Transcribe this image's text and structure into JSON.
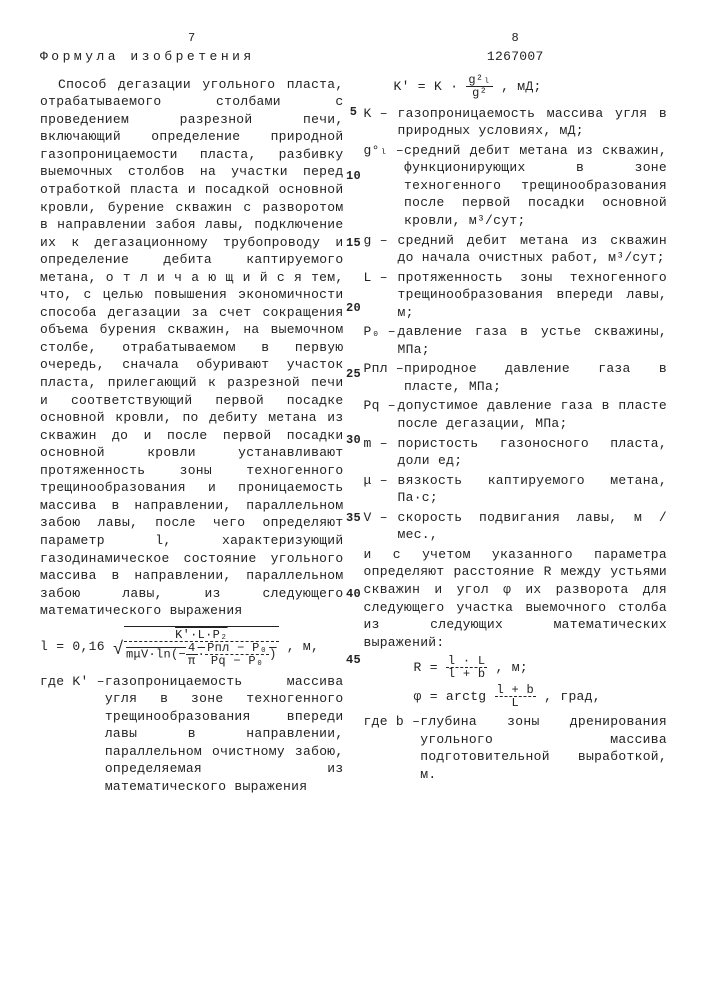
{
  "left": {
    "page_num": "7",
    "title": "Формула изобретения",
    "body": "Способ дегазации угольного пласта, отрабатываемого столбами с проведением разрезной печи, включающий определение природной газопроницаемости пласта, разбивку выемочных столбов на участки перед отработкой пласта и посадкой основной кровли, бурение скважин с разворотом в направлении забоя лавы, подключение их к дегазационному трубопроводу и определение дебита каптируемого метана, о т л и ч а ю щ и й с я  тем, что, с целью повышения экономичности способа дегазации за счет сокращения объема бурения скважин, на выемочном столбе, отрабатываемом в первую очередь, сначала обуривают участок пласта, прилегающий к разрезной печи и соответствующий первой посадке основной кровли, по дебиту метана из скважин до и после первой посадки основной кровли устанавливают протяженность зоны техногенного трещинообразования и проницаемость массива в направлении, параллельном забою лавы, после чего определяют параметр l, характеризующий газодинамическое состояние угольного массива в направлении, параллельном забою лавы, из следующего математического выражения",
    "formula_prefix": "l = 0,16",
    "formula_numer": "K'·L·P₂",
    "formula_denom_a": "mμV·ln(−",
    "formula_frac1_top": "4",
    "formula_frac1_bot": "π",
    "formula_denom_b": "·",
    "formula_frac2_top": "Pпл − P₀",
    "formula_frac2_bot": "Pq − P₀",
    "formula_denom_c": ")",
    "formula_unit": ", м,",
    "where_k_label": "где K' –",
    "where_k_text": "газопроницаемость массива угля в зоне техногенного трещинообразования впереди лавы в направлении, параллельном очистному забою, определяемая из математического выражения"
  },
  "right": {
    "page_num": "8",
    "doc_num": "1267007",
    "formula_kprime_left": "K' = K ·",
    "formula_kprime_top": "g²ₗ",
    "formula_kprime_bot": "g²",
    "formula_kprime_unit": ", мД;",
    "vars": [
      {
        "label": "K –",
        "text": "газопроницаемость массива угля в природных условиях, мД;"
      },
      {
        "label": "g°ₗ –",
        "text": "средний дебит метана из скважин, функционирующих в зоне техногенного трещинообразования после первой посадки основной кровли, м³/сут;"
      },
      {
        "label": "g –",
        "text": "средний дебит метана из скважин до начала очистных работ, м³/сут;"
      },
      {
        "label": "L –",
        "text": "протяженность зоны техногенного трещинообразования впереди лавы, м;"
      },
      {
        "label": "P₀ –",
        "text": "давление газа в устье скважины, МПа;"
      },
      {
        "label": "Pпл –",
        "text": "природное давление газа в пласте, МПа;"
      },
      {
        "label": "Pq –",
        "text": "допустимое давление газа в пласте после дегазации, МПа;"
      },
      {
        "label": "m –",
        "text": "пористость газоносного пласта, доли ед;"
      },
      {
        "label": "μ –",
        "text": "вязкость каптируемого метана, Па·с;"
      },
      {
        "label": "V –",
        "text": "скорость подвигания лавы, м /мес.,"
      }
    ],
    "body2": "и с учетом указанного параметра определяют расстояние R между устьями скважин и угол φ их разворота для следующего участка выемочного столба из следующих математических выражений:",
    "formula_R_left": "R =",
    "formula_R_top": "l · L",
    "formula_R_bot": "l + b",
    "formula_R_unit": ", м;",
    "formula_phi_left": "φ = arctg",
    "formula_phi_top": "l + b",
    "formula_phi_bot": "L",
    "formula_phi_unit": ", град,",
    "where_b_label": "где b –",
    "where_b_text": "глубина зоны дренирования угольного массива подготовительной выработкой, м."
  },
  "line_numbers": [
    "5",
    "10",
    "15",
    "20",
    "25",
    "30",
    "35",
    "40",
    "45"
  ]
}
